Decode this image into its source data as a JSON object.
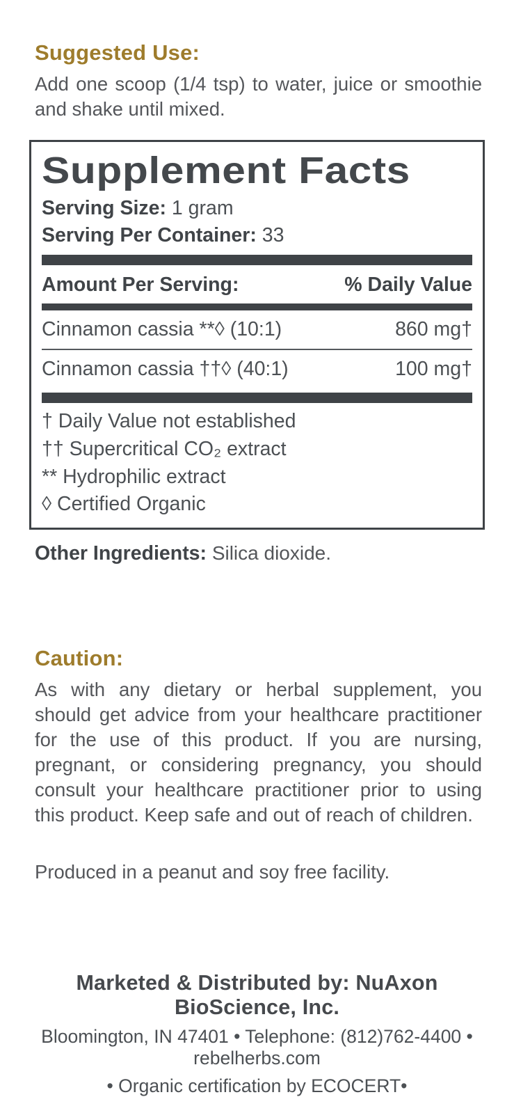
{
  "suggested_use": {
    "heading": "Suggested Use:",
    "body": "Add one scoop (1/4 tsp) to water, juice or smoothie and shake until mixed."
  },
  "supplement_facts": {
    "title": "Supplement Facts",
    "serving_size_label": "Serving Size:",
    "serving_size_value": "1 gram",
    "servings_per_container_label": "Serving Per Container:",
    "servings_per_container_value": "33",
    "header": {
      "amount_label": "Amount Per Serving:",
      "daily_value_label": "% Daily Value"
    },
    "rows": [
      {
        "name": "Cinnamon cassia **◊ (10:1)",
        "amount": "860 mg†"
      },
      {
        "name": "Cinnamon cassia ††◊ (40:1)",
        "amount": "100 mg†"
      }
    ],
    "footnotes": [
      "† Daily Value not established",
      "†† Supercritical CO₂ extract",
      "** Hydrophilic extract",
      "◊ Certified Organic"
    ]
  },
  "other_ingredients": {
    "label": "Other Ingredients:",
    "value": "Silica dioxide."
  },
  "caution": {
    "heading": "Caution:",
    "body": "As with any dietary or herbal supplement, you should get advice from your healthcare practitioner for the use of this product. If you are nursing, pregnant, or considering pregnancy, you should consult your healthcare practitioner prior to using this product. Keep safe and out of reach of children.",
    "facility": "Produced in a peanut and soy free facility."
  },
  "footer": {
    "distributor": "Marketed & Distributed by: NuAxon BioScience, Inc.",
    "contact": "Bloomington, IN 47401 • Telephone: (812)762-4400 • rebelherbs.com",
    "certification": "• Organic certification by ECOCERT•"
  },
  "colors": {
    "accent_gold": "#9e7c2c",
    "ink": "#3f4347",
    "body_text": "#54565a"
  }
}
